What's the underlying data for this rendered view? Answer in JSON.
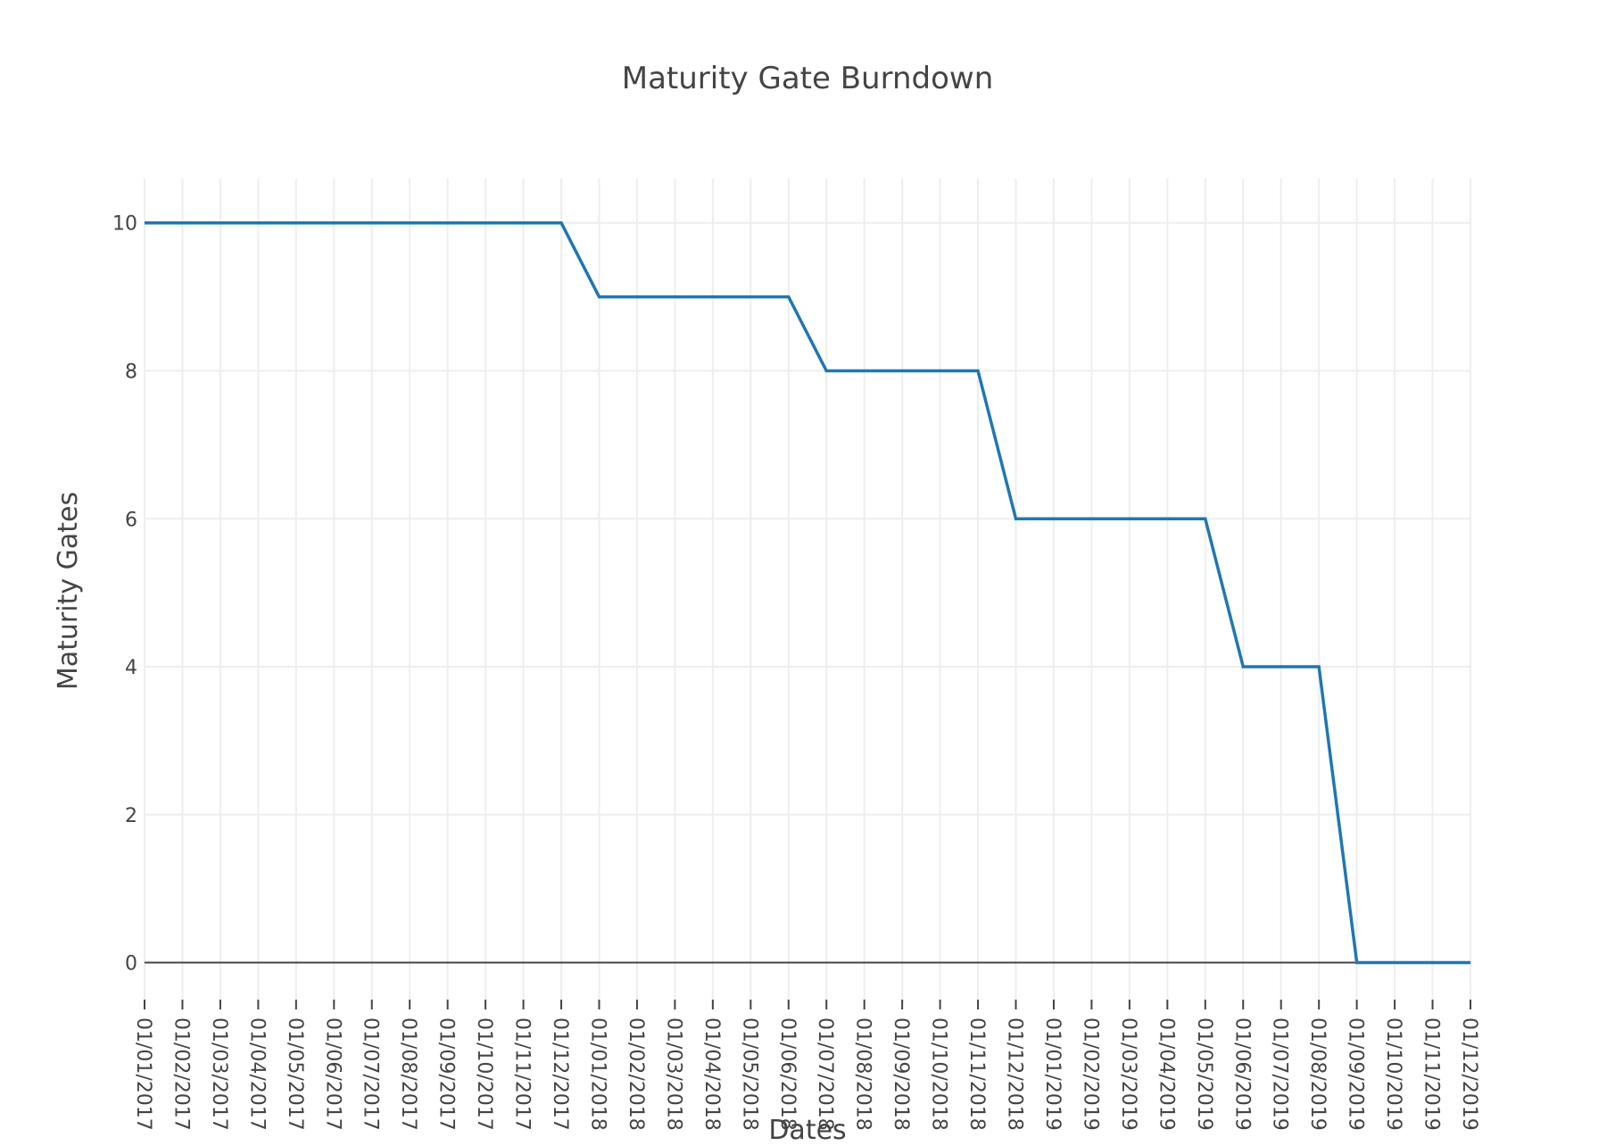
{
  "chart_data": {
    "type": "line",
    "title": "Maturity Gate Burndown",
    "xlabel": "Dates",
    "ylabel": "Maturity Gates",
    "x": [
      "01/01/2017",
      "01/02/2017",
      "01/03/2017",
      "01/04/2017",
      "01/05/2017",
      "01/06/2017",
      "01/07/2017",
      "01/08/2017",
      "01/09/2017",
      "01/10/2017",
      "01/11/2017",
      "01/12/2017",
      "01/01/2018",
      "01/02/2018",
      "01/03/2018",
      "01/04/2018",
      "01/05/2018",
      "01/06/2018",
      "01/07/2018",
      "01/08/2018",
      "01/09/2018",
      "01/10/2018",
      "01/11/2018",
      "01/12/2018",
      "01/01/2019",
      "01/02/2019",
      "01/03/2019",
      "01/04/2019",
      "01/05/2019",
      "01/06/2019",
      "01/07/2019",
      "01/08/2019",
      "01/09/2019",
      "01/10/2019",
      "01/11/2019",
      "01/12/2019"
    ],
    "series": [
      {
        "values": [
          10,
          10,
          10,
          10,
          10,
          10,
          10,
          10,
          10,
          10,
          10,
          10,
          9,
          9,
          9,
          9,
          9,
          9,
          8,
          8,
          8,
          8,
          8,
          6,
          6,
          6,
          6,
          6,
          6,
          4,
          4,
          4,
          0,
          0,
          0,
          0
        ],
        "color": "#1f77b4"
      }
    ],
    "ylim": [
      -0.5,
      10.6
    ],
    "yticks": [
      0,
      2,
      4,
      6,
      8,
      10
    ],
    "grid": true,
    "legend": false
  },
  "colors": {
    "grid": "#eeeeee",
    "zero_line": "#444444",
    "text": "#444444",
    "series": "#1f77b4"
  }
}
